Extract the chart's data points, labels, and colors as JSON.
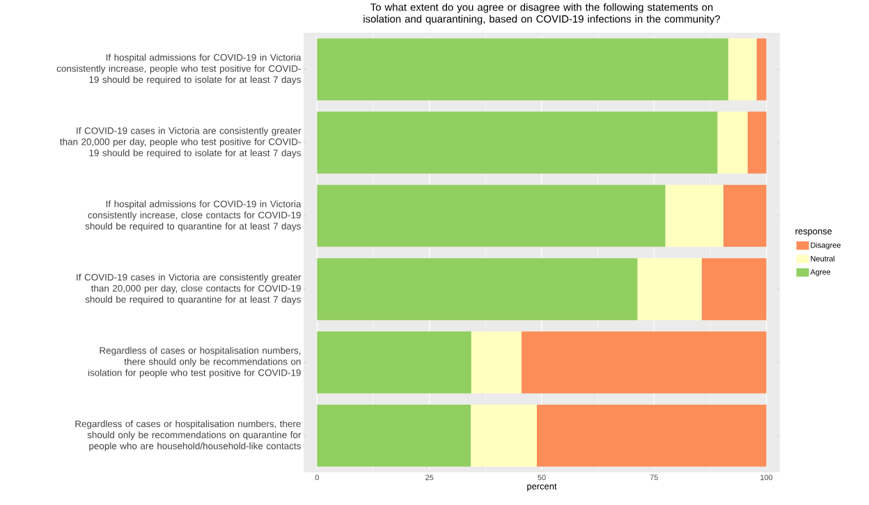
{
  "chart_data": {
    "type": "bar",
    "orientation": "horizontal",
    "stacked": true,
    "title": "To what extent do you agree or disagree with the following statements on isolation and quarantining, based on COVID-19 infections in the community?",
    "xlabel": "percent",
    "legend_title": "response",
    "legend": "right",
    "grid": "x",
    "categories": [
      "If hospital admissions for COVID-19 in Victoria consistently increase, people who test positive for COVID-19 should be required to isolate for at least 7 days",
      "If COVID-19 cases in Victoria are consistently greater than 20,000 per day, people who test positive for COVID-19 should be required to isolate for at least 7 days",
      "If hospital admissions for COVID-19 in Victoria consistently increase, close contacts for COVID-19 should be required to quarantine for at least 7 days",
      "If COVID-19 cases in Victoria are consistently greater than 20,000 per day, close contacts for COVID-19 should be required to quarantine for at least 7 days",
      "Regardless of cases or hospitalisation numbers, there should only be recommendations on isolation for people who test positive for COVID-19",
      "Regardless of cases or hospitalisation numbers, there should only be recommendations on quarantine for people who are household/household-like contacts"
    ],
    "series": [
      {
        "name": "Agree",
        "color": "#91cf60",
        "values": [
          91.5,
          89.1,
          77.5,
          71.3,
          34.3,
          34.2
        ]
      },
      {
        "name": "Neutral",
        "color": "#ffffbf",
        "values": [
          6.3,
          6.7,
          12.9,
          14.3,
          11.2,
          14.7
        ]
      },
      {
        "name": "Disagree",
        "color": "#fc8d59",
        "values": [
          2.2,
          4.2,
          9.6,
          14.4,
          54.5,
          51.1
        ]
      }
    ],
    "xlim": [
      -3,
      103
    ],
    "xticks": [
      0,
      25,
      50,
      75,
      100
    ]
  }
}
